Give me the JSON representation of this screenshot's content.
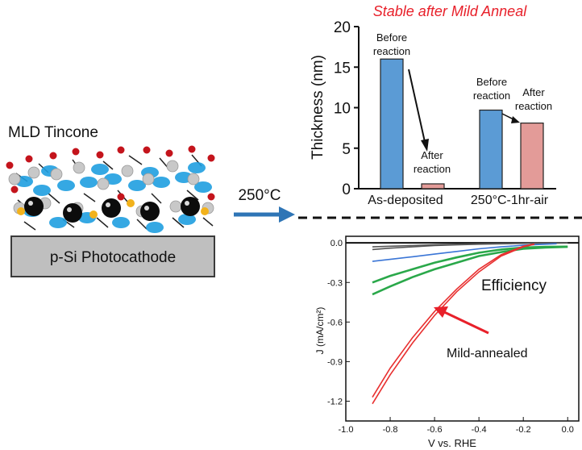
{
  "colors": {
    "blue_bar": "#5b9bd5",
    "red_bar": "#e39b98",
    "title_red": "#e8202a",
    "arrow_blue": "#2e75b6",
    "substrate_gray": "#bfbfbf",
    "curve_gray": "#555555",
    "curve_blue": "#3a75d6",
    "curve_green": "#2aa84a",
    "curve_red": "#e83030"
  },
  "left_panel": {
    "film_label": "MLD Tincone",
    "substrate_label": "p-Si Photocathode",
    "process_label": "250°C"
  },
  "chart_data": [
    {
      "type": "bar",
      "title": "Stable after Mild Anneal",
      "ylabel": "Thickness (nm)",
      "ylim": [
        0,
        20
      ],
      "yticks": [
        0,
        5,
        10,
        15,
        20
      ],
      "categories": [
        "As-deposited",
        "250°C-1hr-air"
      ],
      "series": [
        {
          "name": "Before reaction",
          "values": [
            16,
            9.7
          ]
        },
        {
          "name": "After reaction",
          "values": [
            0.6,
            8.1
          ]
        }
      ],
      "annotations": {
        "before_1": "Before\nreaction",
        "after_1": "After\nreaction",
        "before_2": "Before\nreaction",
        "after_2": "After\nreaction"
      }
    },
    {
      "type": "line",
      "xlabel": "V vs. RHE",
      "ylabel": "J (mA/cm²)",
      "xlim": [
        -1.0,
        0.05
      ],
      "ylim": [
        -1.35,
        0.05
      ],
      "xticks": [
        "-1.0",
        "-0.8",
        "-0.6",
        "-0.4",
        "-0.2",
        "0.0"
      ],
      "yticks": [
        "0.0",
        "-0.3",
        "-0.6",
        "-0.9",
        "-1.2"
      ],
      "annotations": {
        "panel_text": "Efficiency",
        "arrow_text": "Mild-annealed"
      },
      "series": [
        {
          "color": "#555555",
          "x": [
            -0.88,
            -0.8,
            -0.7,
            -0.6,
            -0.5,
            -0.4,
            -0.3,
            -0.2,
            -0.1,
            0.0
          ],
          "y": [
            -0.05,
            -0.04,
            -0.03,
            -0.02,
            -0.015,
            -0.01,
            -0.007,
            -0.004,
            -0.002,
            0.0
          ]
        },
        {
          "color": "#555555",
          "x": [
            -0.88,
            -0.8,
            -0.7,
            -0.6,
            -0.5,
            -0.4,
            -0.3,
            -0.2,
            -0.1,
            0.0
          ],
          "y": [
            -0.03,
            -0.025,
            -0.02,
            -0.015,
            -0.01,
            -0.007,
            -0.004,
            -0.002,
            -0.001,
            0.0
          ]
        },
        {
          "color": "#3a75d6",
          "x": [
            -0.88,
            -0.8,
            -0.7,
            -0.6,
            -0.5,
            -0.4,
            -0.3,
            -0.2,
            -0.1,
            -0.05
          ],
          "y": [
            -0.14,
            -0.125,
            -0.105,
            -0.085,
            -0.065,
            -0.045,
            -0.03,
            -0.018,
            -0.01,
            -0.006
          ]
        },
        {
          "color": "#2aa84a",
          "x": [
            -0.88,
            -0.8,
            -0.7,
            -0.6,
            -0.5,
            -0.4,
            -0.3,
            -0.2,
            -0.1,
            0.0
          ],
          "y": [
            -0.39,
            -0.33,
            -0.26,
            -0.2,
            -0.15,
            -0.1,
            -0.07,
            -0.045,
            -0.035,
            -0.03
          ]
        },
        {
          "color": "#2aa84a",
          "x": [
            -0.88,
            -0.8,
            -0.7,
            -0.6,
            -0.5,
            -0.4,
            -0.3,
            -0.2,
            -0.1,
            0.0
          ],
          "y": [
            -0.3,
            -0.25,
            -0.2,
            -0.15,
            -0.11,
            -0.075,
            -0.05,
            -0.035,
            -0.03,
            -0.028
          ]
        },
        {
          "color": "#e83030",
          "x": [
            -0.88,
            -0.8,
            -0.7,
            -0.6,
            -0.5,
            -0.4,
            -0.3,
            -0.2,
            -0.15
          ],
          "y": [
            -1.22,
            -1.0,
            -0.76,
            -0.55,
            -0.37,
            -0.22,
            -0.1,
            -0.03,
            -0.01
          ]
        },
        {
          "color": "#e83030",
          "x": [
            -0.88,
            -0.8,
            -0.7,
            -0.6,
            -0.5,
            -0.4,
            -0.3,
            -0.2,
            -0.15
          ],
          "y": [
            -1.17,
            -0.95,
            -0.72,
            -0.52,
            -0.35,
            -0.2,
            -0.09,
            -0.025,
            -0.008
          ]
        }
      ]
    }
  ]
}
